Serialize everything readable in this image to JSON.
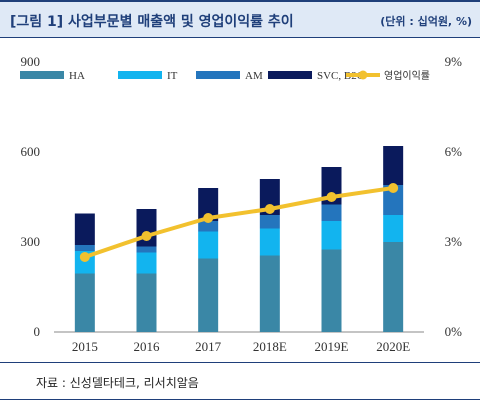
{
  "header": {
    "title": "[그림 1] 사업부문별 매출액 및 영업이익률 추이",
    "unit": "(단위 : 십억원, %)"
  },
  "footer": {
    "source": "자료 :  신성델타테크, 리서치알음"
  },
  "colors": {
    "HA": "#3a87a6",
    "IT": "#12b4ef",
    "AM": "#2475bd",
    "SVC_B2C": "#0a1a5c",
    "margin_line": "#f2c12e",
    "accent": "#1f3f7a"
  },
  "chart_data": {
    "type": "bar",
    "stacked": true,
    "categories": [
      "2015",
      "2016",
      "2017",
      "2018E",
      "2019E",
      "2020E"
    ],
    "series": [
      {
        "name": "HA",
        "axis": "left",
        "values": [
          195,
          195,
          245,
          255,
          275,
          300
        ]
      },
      {
        "name": "IT",
        "axis": "left",
        "values": [
          75,
          70,
          90,
          90,
          95,
          90
        ]
      },
      {
        "name": "AM",
        "axis": "left",
        "values": [
          20,
          20,
          35,
          45,
          55,
          100
        ]
      },
      {
        "name": "SVC, B2C",
        "axis": "left",
        "values": [
          105,
          125,
          110,
          120,
          125,
          130
        ]
      },
      {
        "name": "영업이익률",
        "type": "line",
        "axis": "right",
        "values": [
          2.5,
          3.2,
          3.8,
          4.1,
          4.5,
          4.8
        ]
      }
    ],
    "ylim": [
      0,
      900
    ],
    "y_ticks": [
      "0",
      "300",
      "600",
      "900"
    ],
    "y2lim": [
      0,
      9
    ],
    "y2_ticks": [
      "0%",
      "3%",
      "6%",
      "9%"
    ],
    "legend_position": "top",
    "grid": false
  }
}
